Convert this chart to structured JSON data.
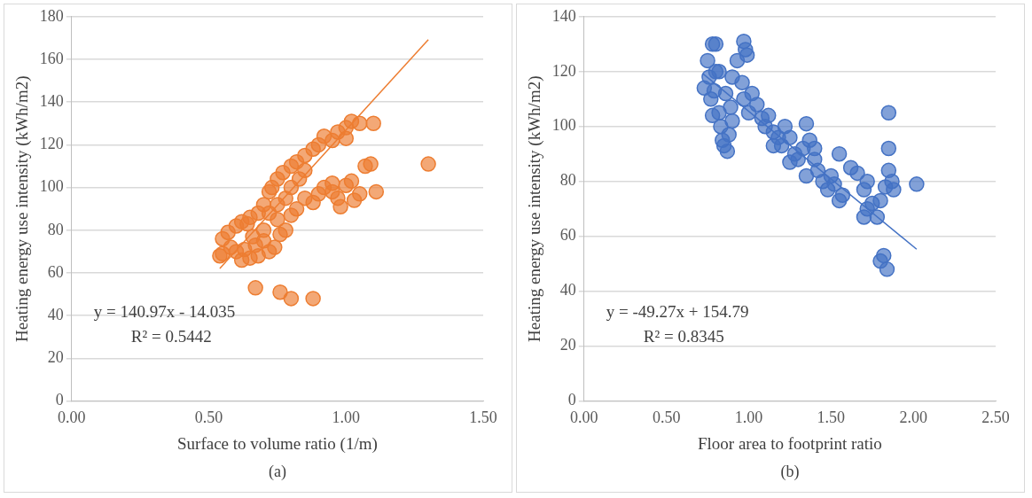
{
  "chart_data": [
    {
      "type": "scatter",
      "xlabel": "Surface to volume ratio (1/m)",
      "ylabel": "Heating energy use intensity (kWh/m2)",
      "xlim": [
        0,
        1.5
      ],
      "ylim": [
        0,
        180
      ],
      "xticks": [
        {
          "value": 0,
          "label": "0.00"
        },
        {
          "value": 0.5,
          "label": "0.50"
        },
        {
          "value": 1,
          "label": "1.00"
        },
        {
          "value": 1.5,
          "label": "1.50"
        }
      ],
      "yticks": [
        0,
        20,
        40,
        60,
        80,
        100,
        120,
        140,
        160,
        180
      ],
      "grid": "y",
      "legend": false,
      "annotations": [
        "y = 140.97x - 14.035",
        "R² = 0.5442",
        "(a)"
      ],
      "series": [
        {
          "color": "#ed7d31",
          "marker": "circle",
          "x": [
            0.55,
            0.57,
            0.6,
            0.62,
            0.65,
            0.68,
            0.7,
            0.72,
            0.73,
            0.75,
            0.77,
            0.8,
            0.82,
            0.85,
            0.88,
            0.9,
            0.92,
            0.95,
            0.97,
            1.0,
            1.02,
            1.05,
            1.1,
            1.0,
            0.85,
            0.88,
            0.9,
            0.92,
            0.95,
            0.97,
            1.0,
            1.02,
            1.05,
            1.07,
            1.09,
            1.11,
            0.98,
            0.95,
            1.03,
            0.54,
            0.55,
            0.58,
            0.6,
            0.62,
            0.63,
            0.65,
            0.67,
            0.68,
            0.7,
            0.72,
            0.74,
            0.76,
            0.78,
            0.8,
            0.82,
            0.75,
            0.72,
            0.7,
            0.66,
            0.64,
            0.67,
            0.76,
            0.8,
            0.88,
            1.3,
            0.78,
            0.8,
            0.83,
            0.85,
            0.75
          ],
          "values": [
            76,
            79,
            82,
            84,
            86,
            88,
            92,
            98,
            100,
            104,
            107,
            110,
            112,
            115,
            118,
            120,
            124,
            122,
            126,
            128,
            131,
            130,
            130,
            123,
            95,
            93,
            97,
            100,
            98,
            95,
            101,
            103,
            97,
            110,
            111,
            98,
            91,
            102,
            94,
            68,
            69,
            72,
            70,
            66,
            71,
            67,
            73,
            68,
            75,
            70,
            72,
            78,
            80,
            87,
            90,
            85,
            88,
            80,
            77,
            83,
            53,
            51,
            48,
            48,
            111,
            95,
            100,
            104,
            108,
            92
          ]
        },
        {
          "type": "line",
          "marker": "none",
          "color": "#ed7d31",
          "x": [
            0.54,
            1.3
          ],
          "values": [
            62.1,
            169.2
          ]
        }
      ]
    },
    {
      "type": "scatter",
      "xlabel": "Floor area to footprint ratio",
      "ylabel": "Heating energy use intensity (kWh/m2)",
      "xlim": [
        0,
        2.5
      ],
      "ylim": [
        0,
        140
      ],
      "xticks": [
        {
          "value": 0,
          "label": "0.00"
        },
        {
          "value": 0.5,
          "label": "0.50"
        },
        {
          "value": 1,
          "label": "1.00"
        },
        {
          "value": 1.5,
          "label": "1.50"
        },
        {
          "value": 2,
          "label": "2.00"
        },
        {
          "value": 2.5,
          "label": "2.50"
        }
      ],
      "yticks": [
        0,
        20,
        40,
        60,
        80,
        100,
        120,
        140
      ],
      "grid": "y",
      "legend": false,
      "annotations": [
        "y = -49.27x + 154.79",
        "R² = 0.8345",
        "(b)"
      ],
      "series": [
        {
          "color": "#4472c4",
          "marker": "circle",
          "x": [
            0.73,
            0.75,
            0.76,
            0.77,
            0.78,
            0.8,
            0.79,
            0.8,
            0.82,
            0.83,
            0.84,
            0.85,
            0.87,
            0.88,
            0.89,
            0.9,
            0.86,
            0.9,
            0.82,
            0.78,
            0.93,
            0.97,
            0.98,
            0.99,
            0.96,
            0.97,
            1.0,
            1.02,
            1.05,
            1.08,
            1.1,
            1.12,
            1.15,
            1.18,
            1.2,
            1.22,
            1.25,
            1.28,
            1.3,
            1.33,
            1.35,
            1.37,
            1.4,
            1.42,
            1.45,
            1.48,
            1.5,
            1.52,
            1.55,
            1.57,
            1.55,
            1.35,
            1.25,
            1.15,
            1.4,
            1.62,
            1.66,
            1.7,
            1.72,
            1.75,
            1.72,
            1.78,
            1.8,
            1.83,
            1.85,
            1.85,
            1.85,
            1.87,
            1.88,
            2.02,
            1.82,
            1.8,
            1.84,
            1.7
          ],
          "values": [
            114,
            124,
            118,
            110,
            130,
            130,
            113,
            120,
            105,
            100,
            95,
            93,
            91,
            97,
            107,
            102,
            112,
            118,
            120,
            104,
            124,
            131,
            128,
            126,
            116,
            110,
            105,
            112,
            108,
            103,
            100,
            104,
            98,
            96,
            93,
            100,
            96,
            90,
            88,
            92,
            101,
            95,
            88,
            84,
            80,
            77,
            82,
            79,
            90,
            75,
            73,
            82,
            87,
            93,
            92,
            85,
            83,
            77,
            70,
            72,
            80,
            67,
            73,
            78,
            84,
            105,
            92,
            80,
            77,
            79,
            53,
            51,
            48,
            67
          ]
        },
        {
          "type": "line",
          "marker": "none",
          "color": "#4472c4",
          "x": [
            0.72,
            2.02
          ],
          "values": [
            119.3,
            55.3
          ]
        }
      ]
    }
  ]
}
